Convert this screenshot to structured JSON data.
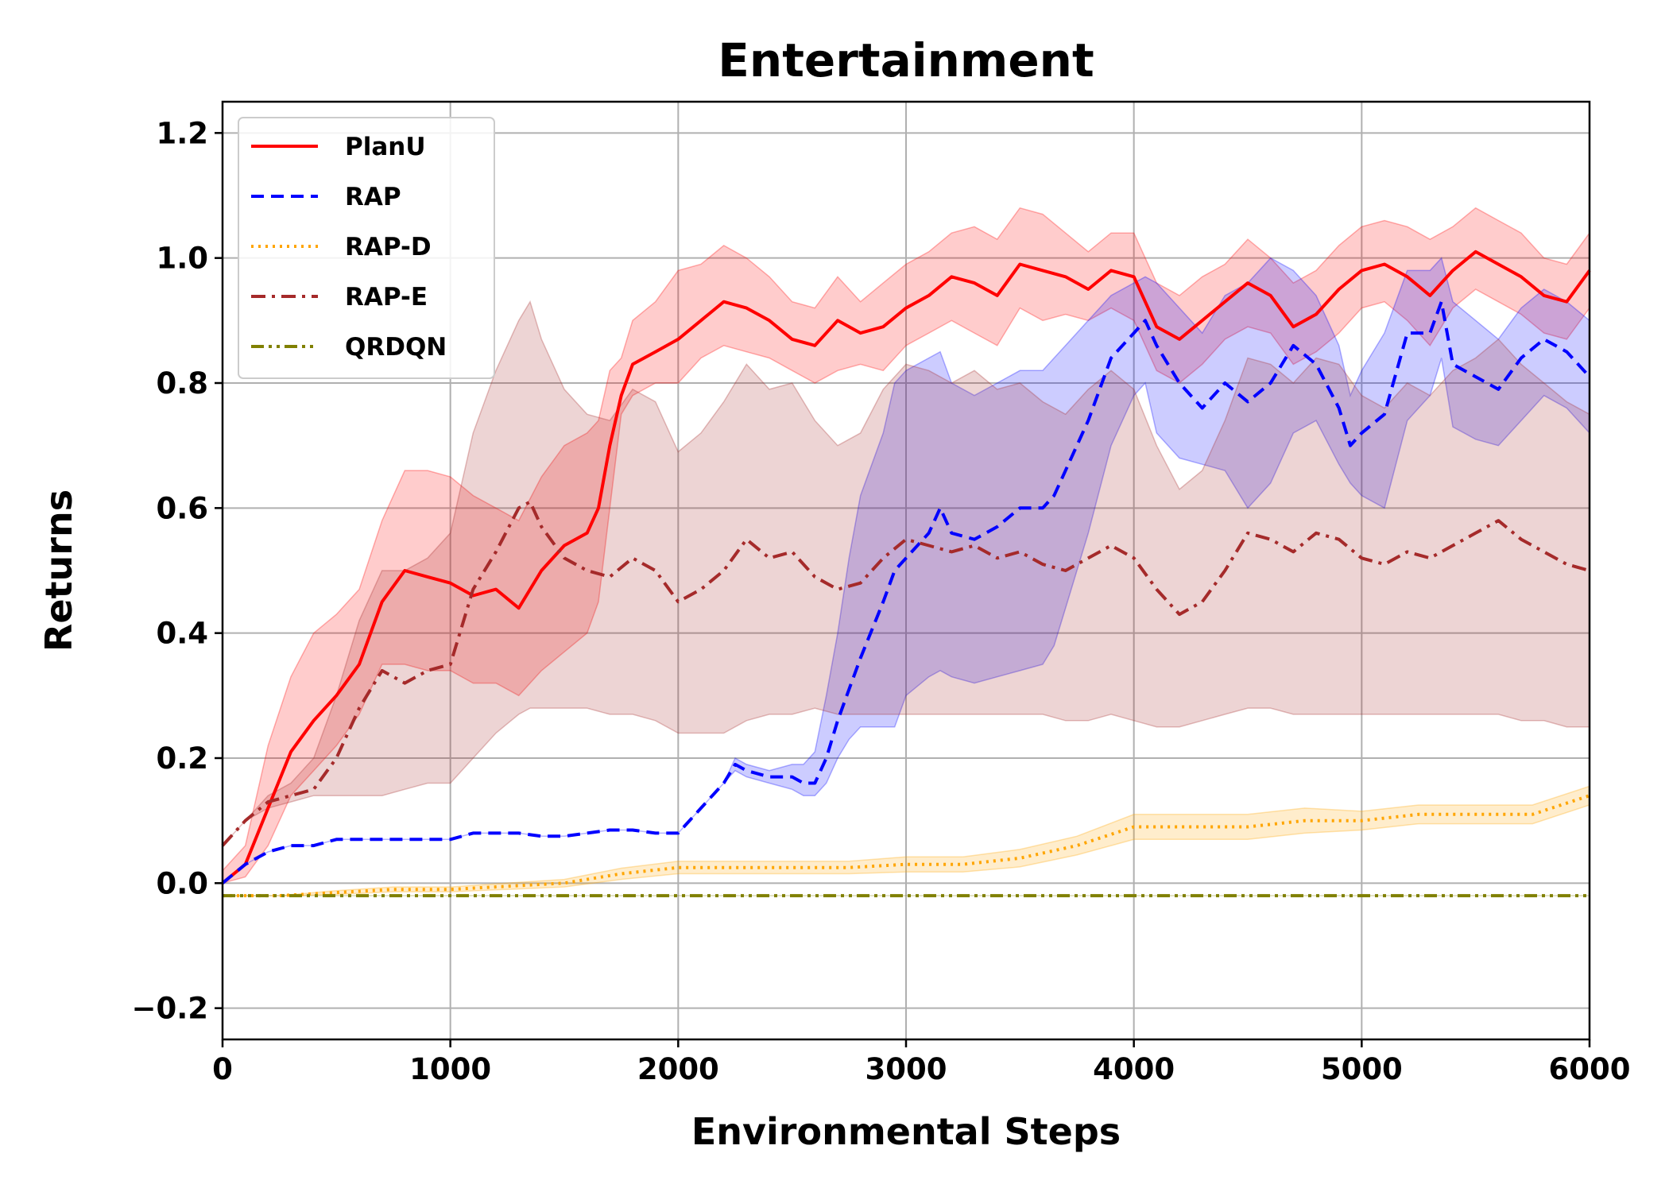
{
  "chart_data": {
    "type": "line",
    "title": "Entertainment",
    "xlabel": "Environmental Steps",
    "ylabel": "Returns",
    "xlim": [
      0,
      6000
    ],
    "ylim": [
      -0.25,
      1.25
    ],
    "xticks": [
      0,
      1000,
      2000,
      3000,
      4000,
      5000,
      6000
    ],
    "xtick_labels": [
      "0",
      "1000",
      "2000",
      "3000",
      "4000",
      "5000",
      "6000"
    ],
    "yticks": [
      -0.2,
      0.0,
      0.2,
      0.4,
      0.6,
      0.8,
      1.0,
      1.2
    ],
    "ytick_labels": [
      "−0.2",
      "0.0",
      "0.2",
      "0.4",
      "0.6",
      "0.8",
      "1.0",
      "1.2"
    ],
    "grid": true,
    "legend_position": "top-left",
    "series": [
      {
        "name": "PlanU",
        "color": "#ff0000",
        "style": "solid",
        "x": [
          0,
          100,
          200,
          300,
          400,
          500,
          600,
          700,
          800,
          900,
          1000,
          1100,
          1200,
          1300,
          1400,
          1500,
          1600,
          1650,
          1700,
          1750,
          1800,
          1900,
          2000,
          2100,
          2200,
          2300,
          2400,
          2500,
          2600,
          2700,
          2800,
          2900,
          3000,
          3100,
          3200,
          3300,
          3400,
          3500,
          3600,
          3700,
          3800,
          3900,
          4000,
          4100,
          4200,
          4300,
          4400,
          4500,
          4600,
          4700,
          4800,
          4900,
          5000,
          5100,
          5200,
          5300,
          5400,
          5500,
          5600,
          5700,
          5800,
          5900,
          6000
        ],
        "values": [
          0.0,
          0.03,
          0.12,
          0.21,
          0.26,
          0.3,
          0.35,
          0.45,
          0.5,
          0.49,
          0.48,
          0.46,
          0.47,
          0.44,
          0.5,
          0.54,
          0.56,
          0.6,
          0.7,
          0.78,
          0.83,
          0.85,
          0.87,
          0.9,
          0.93,
          0.92,
          0.9,
          0.87,
          0.86,
          0.9,
          0.88,
          0.89,
          0.92,
          0.94,
          0.97,
          0.96,
          0.94,
          0.99,
          0.98,
          0.97,
          0.95,
          0.98,
          0.97,
          0.89,
          0.87,
          0.9,
          0.93,
          0.96,
          0.94,
          0.89,
          0.91,
          0.95,
          0.98,
          0.99,
          0.97,
          0.94,
          0.98,
          1.01,
          0.99,
          0.97,
          0.94,
          0.93,
          0.98
        ],
        "lower": [
          0.0,
          0.01,
          0.06,
          0.14,
          0.18,
          0.22,
          0.27,
          0.35,
          0.35,
          0.34,
          0.34,
          0.32,
          0.32,
          0.3,
          0.34,
          0.37,
          0.4,
          0.45,
          0.6,
          0.75,
          0.78,
          0.8,
          0.8,
          0.84,
          0.86,
          0.85,
          0.84,
          0.82,
          0.8,
          0.82,
          0.83,
          0.82,
          0.86,
          0.88,
          0.9,
          0.88,
          0.86,
          0.92,
          0.9,
          0.91,
          0.9,
          0.92,
          0.9,
          0.82,
          0.8,
          0.83,
          0.87,
          0.89,
          0.88,
          0.83,
          0.85,
          0.88,
          0.92,
          0.93,
          0.9,
          0.86,
          0.92,
          0.95,
          0.93,
          0.91,
          0.88,
          0.87,
          0.92
        ],
        "upper": [
          0.02,
          0.06,
          0.22,
          0.33,
          0.4,
          0.43,
          0.47,
          0.58,
          0.66,
          0.66,
          0.65,
          0.62,
          0.6,
          0.58,
          0.65,
          0.7,
          0.72,
          0.74,
          0.82,
          0.84,
          0.9,
          0.93,
          0.98,
          0.99,
          1.02,
          1.0,
          0.97,
          0.93,
          0.92,
          0.97,
          0.93,
          0.96,
          0.99,
          1.01,
          1.04,
          1.05,
          1.03,
          1.08,
          1.07,
          1.04,
          1.01,
          1.04,
          1.04,
          0.96,
          0.94,
          0.97,
          0.99,
          1.03,
          1.0,
          0.96,
          0.98,
          1.02,
          1.05,
          1.06,
          1.05,
          1.03,
          1.05,
          1.08,
          1.06,
          1.04,
          1.0,
          0.99,
          1.04
        ]
      },
      {
        "name": "RAP",
        "color": "#0000ff",
        "style": "dashed",
        "x": [
          0,
          100,
          200,
          300,
          400,
          500,
          600,
          700,
          800,
          900,
          1000,
          1100,
          1200,
          1300,
          1400,
          1500,
          1600,
          1700,
          1800,
          1900,
          2000,
          2100,
          2200,
          2250,
          2300,
          2400,
          2500,
          2550,
          2600,
          2650,
          2700,
          2750,
          2800,
          2900,
          2950,
          3000,
          3100,
          3150,
          3200,
          3300,
          3400,
          3500,
          3600,
          3650,
          3700,
          3800,
          3900,
          4000,
          4050,
          4100,
          4200,
          4300,
          4400,
          4500,
          4600,
          4700,
          4800,
          4900,
          4950,
          5000,
          5100,
          5200,
          5300,
          5350,
          5400,
          5500,
          5600,
          5700,
          5800,
          5900,
          6000
        ],
        "values": [
          0.0,
          0.03,
          0.05,
          0.06,
          0.06,
          0.07,
          0.07,
          0.07,
          0.07,
          0.07,
          0.07,
          0.08,
          0.08,
          0.08,
          0.075,
          0.075,
          0.08,
          0.085,
          0.085,
          0.08,
          0.08,
          0.12,
          0.16,
          0.19,
          0.18,
          0.17,
          0.17,
          0.16,
          0.16,
          0.2,
          0.26,
          0.31,
          0.36,
          0.45,
          0.5,
          0.52,
          0.56,
          0.6,
          0.56,
          0.55,
          0.57,
          0.6,
          0.6,
          0.62,
          0.66,
          0.74,
          0.84,
          0.88,
          0.9,
          0.86,
          0.8,
          0.76,
          0.8,
          0.77,
          0.8,
          0.86,
          0.83,
          0.76,
          0.7,
          0.72,
          0.75,
          0.88,
          0.88,
          0.93,
          0.83,
          0.81,
          0.79,
          0.84,
          0.87,
          0.85,
          0.81
        ],
        "lower": [
          0.0,
          0.03,
          0.05,
          0.06,
          0.06,
          0.07,
          0.07,
          0.07,
          0.07,
          0.07,
          0.07,
          0.08,
          0.08,
          0.08,
          0.075,
          0.075,
          0.08,
          0.085,
          0.085,
          0.08,
          0.08,
          0.12,
          0.16,
          0.18,
          0.17,
          0.16,
          0.15,
          0.14,
          0.14,
          0.16,
          0.2,
          0.23,
          0.25,
          0.25,
          0.25,
          0.3,
          0.33,
          0.34,
          0.33,
          0.32,
          0.33,
          0.34,
          0.35,
          0.38,
          0.44,
          0.56,
          0.7,
          0.78,
          0.8,
          0.72,
          0.68,
          0.67,
          0.66,
          0.6,
          0.64,
          0.72,
          0.74,
          0.67,
          0.64,
          0.62,
          0.6,
          0.74,
          0.78,
          0.84,
          0.73,
          0.71,
          0.7,
          0.74,
          0.78,
          0.76,
          0.72
        ],
        "upper": [
          0.0,
          0.03,
          0.05,
          0.06,
          0.06,
          0.07,
          0.07,
          0.07,
          0.07,
          0.07,
          0.07,
          0.08,
          0.08,
          0.08,
          0.075,
          0.075,
          0.08,
          0.085,
          0.085,
          0.08,
          0.08,
          0.12,
          0.16,
          0.2,
          0.19,
          0.18,
          0.19,
          0.19,
          0.21,
          0.3,
          0.4,
          0.52,
          0.62,
          0.72,
          0.8,
          0.82,
          0.84,
          0.85,
          0.8,
          0.78,
          0.8,
          0.82,
          0.82,
          0.84,
          0.86,
          0.9,
          0.94,
          0.96,
          0.97,
          0.96,
          0.92,
          0.88,
          0.94,
          0.96,
          1.0,
          0.98,
          0.94,
          0.86,
          0.78,
          0.82,
          0.88,
          0.98,
          0.98,
          1.0,
          0.93,
          0.9,
          0.87,
          0.92,
          0.95,
          0.93,
          0.9
        ]
      },
      {
        "name": "RAP-D",
        "color": "#ffa500",
        "style": "dotted",
        "x": [
          0,
          250,
          500,
          750,
          1000,
          1250,
          1500,
          1750,
          2000,
          2250,
          2500,
          2750,
          3000,
          3250,
          3500,
          3750,
          4000,
          4250,
          4500,
          4750,
          5000,
          5250,
          5500,
          5750,
          6000
        ],
        "values": [
          -0.02,
          -0.02,
          -0.015,
          -0.01,
          -0.01,
          -0.005,
          0.0,
          0.015,
          0.025,
          0.025,
          0.025,
          0.025,
          0.03,
          0.03,
          0.04,
          0.06,
          0.09,
          0.09,
          0.09,
          0.1,
          0.1,
          0.11,
          0.11,
          0.11,
          0.14
        ],
        "lower": [
          -0.02,
          -0.02,
          -0.018,
          -0.014,
          -0.014,
          -0.01,
          -0.006,
          0.006,
          0.015,
          0.015,
          0.015,
          0.015,
          0.018,
          0.018,
          0.026,
          0.045,
          0.07,
          0.07,
          0.07,
          0.08,
          0.085,
          0.095,
          0.095,
          0.095,
          0.125
        ],
        "upper": [
          -0.02,
          -0.02,
          -0.012,
          -0.006,
          -0.006,
          0.0,
          0.006,
          0.024,
          0.035,
          0.035,
          0.035,
          0.035,
          0.042,
          0.042,
          0.054,
          0.075,
          0.11,
          0.11,
          0.11,
          0.12,
          0.115,
          0.125,
          0.125,
          0.125,
          0.155
        ]
      },
      {
        "name": "RAP-E",
        "color": "#a52a2a",
        "style": "dashdot",
        "x": [
          0,
          100,
          200,
          300,
          400,
          500,
          600,
          700,
          800,
          900,
          1000,
          1100,
          1200,
          1300,
          1350,
          1400,
          1500,
          1600,
          1700,
          1800,
          1900,
          2000,
          2100,
          2200,
          2300,
          2400,
          2500,
          2600,
          2700,
          2800,
          2900,
          3000,
          3100,
          3200,
          3300,
          3400,
          3500,
          3600,
          3700,
          3800,
          3900,
          4000,
          4100,
          4200,
          4300,
          4400,
          4500,
          4600,
          4700,
          4800,
          4900,
          5000,
          5100,
          5200,
          5300,
          5400,
          5500,
          5600,
          5700,
          5800,
          5900,
          6000
        ],
        "values": [
          0.06,
          0.1,
          0.13,
          0.14,
          0.15,
          0.2,
          0.28,
          0.34,
          0.32,
          0.34,
          0.35,
          0.47,
          0.53,
          0.6,
          0.61,
          0.57,
          0.52,
          0.5,
          0.49,
          0.52,
          0.5,
          0.45,
          0.47,
          0.5,
          0.55,
          0.52,
          0.53,
          0.49,
          0.47,
          0.48,
          0.52,
          0.55,
          0.54,
          0.53,
          0.54,
          0.52,
          0.53,
          0.51,
          0.5,
          0.52,
          0.54,
          0.52,
          0.47,
          0.43,
          0.45,
          0.5,
          0.56,
          0.55,
          0.53,
          0.56,
          0.55,
          0.52,
          0.51,
          0.53,
          0.52,
          0.54,
          0.56,
          0.58,
          0.55,
          0.53,
          0.51,
          0.5
        ],
        "lower": [
          0.06,
          0.1,
          0.12,
          0.13,
          0.14,
          0.14,
          0.14,
          0.14,
          0.15,
          0.16,
          0.16,
          0.2,
          0.24,
          0.27,
          0.28,
          0.28,
          0.28,
          0.28,
          0.27,
          0.27,
          0.26,
          0.24,
          0.24,
          0.24,
          0.26,
          0.27,
          0.27,
          0.28,
          0.27,
          0.27,
          0.27,
          0.27,
          0.27,
          0.27,
          0.27,
          0.27,
          0.27,
          0.27,
          0.26,
          0.26,
          0.27,
          0.26,
          0.25,
          0.25,
          0.26,
          0.27,
          0.28,
          0.28,
          0.27,
          0.27,
          0.27,
          0.27,
          0.27,
          0.27,
          0.27,
          0.27,
          0.27,
          0.27,
          0.26,
          0.26,
          0.25,
          0.25
        ],
        "upper": [
          0.06,
          0.1,
          0.14,
          0.16,
          0.2,
          0.3,
          0.42,
          0.5,
          0.5,
          0.52,
          0.56,
          0.72,
          0.82,
          0.9,
          0.93,
          0.87,
          0.79,
          0.75,
          0.74,
          0.79,
          0.77,
          0.69,
          0.72,
          0.77,
          0.83,
          0.79,
          0.8,
          0.74,
          0.7,
          0.72,
          0.79,
          0.83,
          0.82,
          0.8,
          0.82,
          0.79,
          0.8,
          0.77,
          0.75,
          0.79,
          0.82,
          0.79,
          0.7,
          0.63,
          0.66,
          0.74,
          0.84,
          0.83,
          0.8,
          0.84,
          0.83,
          0.78,
          0.76,
          0.8,
          0.78,
          0.82,
          0.84,
          0.87,
          0.83,
          0.8,
          0.77,
          0.75
        ]
      },
      {
        "name": "QRDQN",
        "color": "#808000",
        "style": "dashdotdot",
        "x": [
          0,
          6000
        ],
        "values": [
          -0.02,
          -0.02
        ],
        "lower": [
          -0.02,
          -0.02
        ],
        "upper": [
          -0.02,
          -0.02
        ]
      }
    ]
  }
}
